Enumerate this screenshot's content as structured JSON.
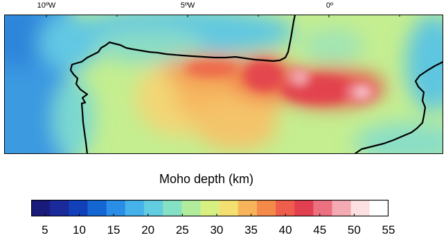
{
  "map": {
    "longitude_labels": [
      "10ºW",
      "5ºW",
      "0º"
    ]
  },
  "colorbar": {
    "title": "Moho depth (km)",
    "range": [
      3,
      55
    ],
    "ticks": [
      "5",
      "10",
      "15",
      "20",
      "25",
      "30",
      "35",
      "40",
      "45",
      "50",
      "55"
    ],
    "colors": [
      "#1a1a7a",
      "#1a2a9a",
      "#1240b8",
      "#1466d2",
      "#2a8ee6",
      "#46b2ea",
      "#62cce0",
      "#86e0c4",
      "#b0ec9c",
      "#d8f082",
      "#f4e070",
      "#f8b45a",
      "#f48a4a",
      "#ee5e4c",
      "#e24050",
      "#ec7080",
      "#f4aab2",
      "#fce0e2",
      "#ffffff"
    ]
  }
}
